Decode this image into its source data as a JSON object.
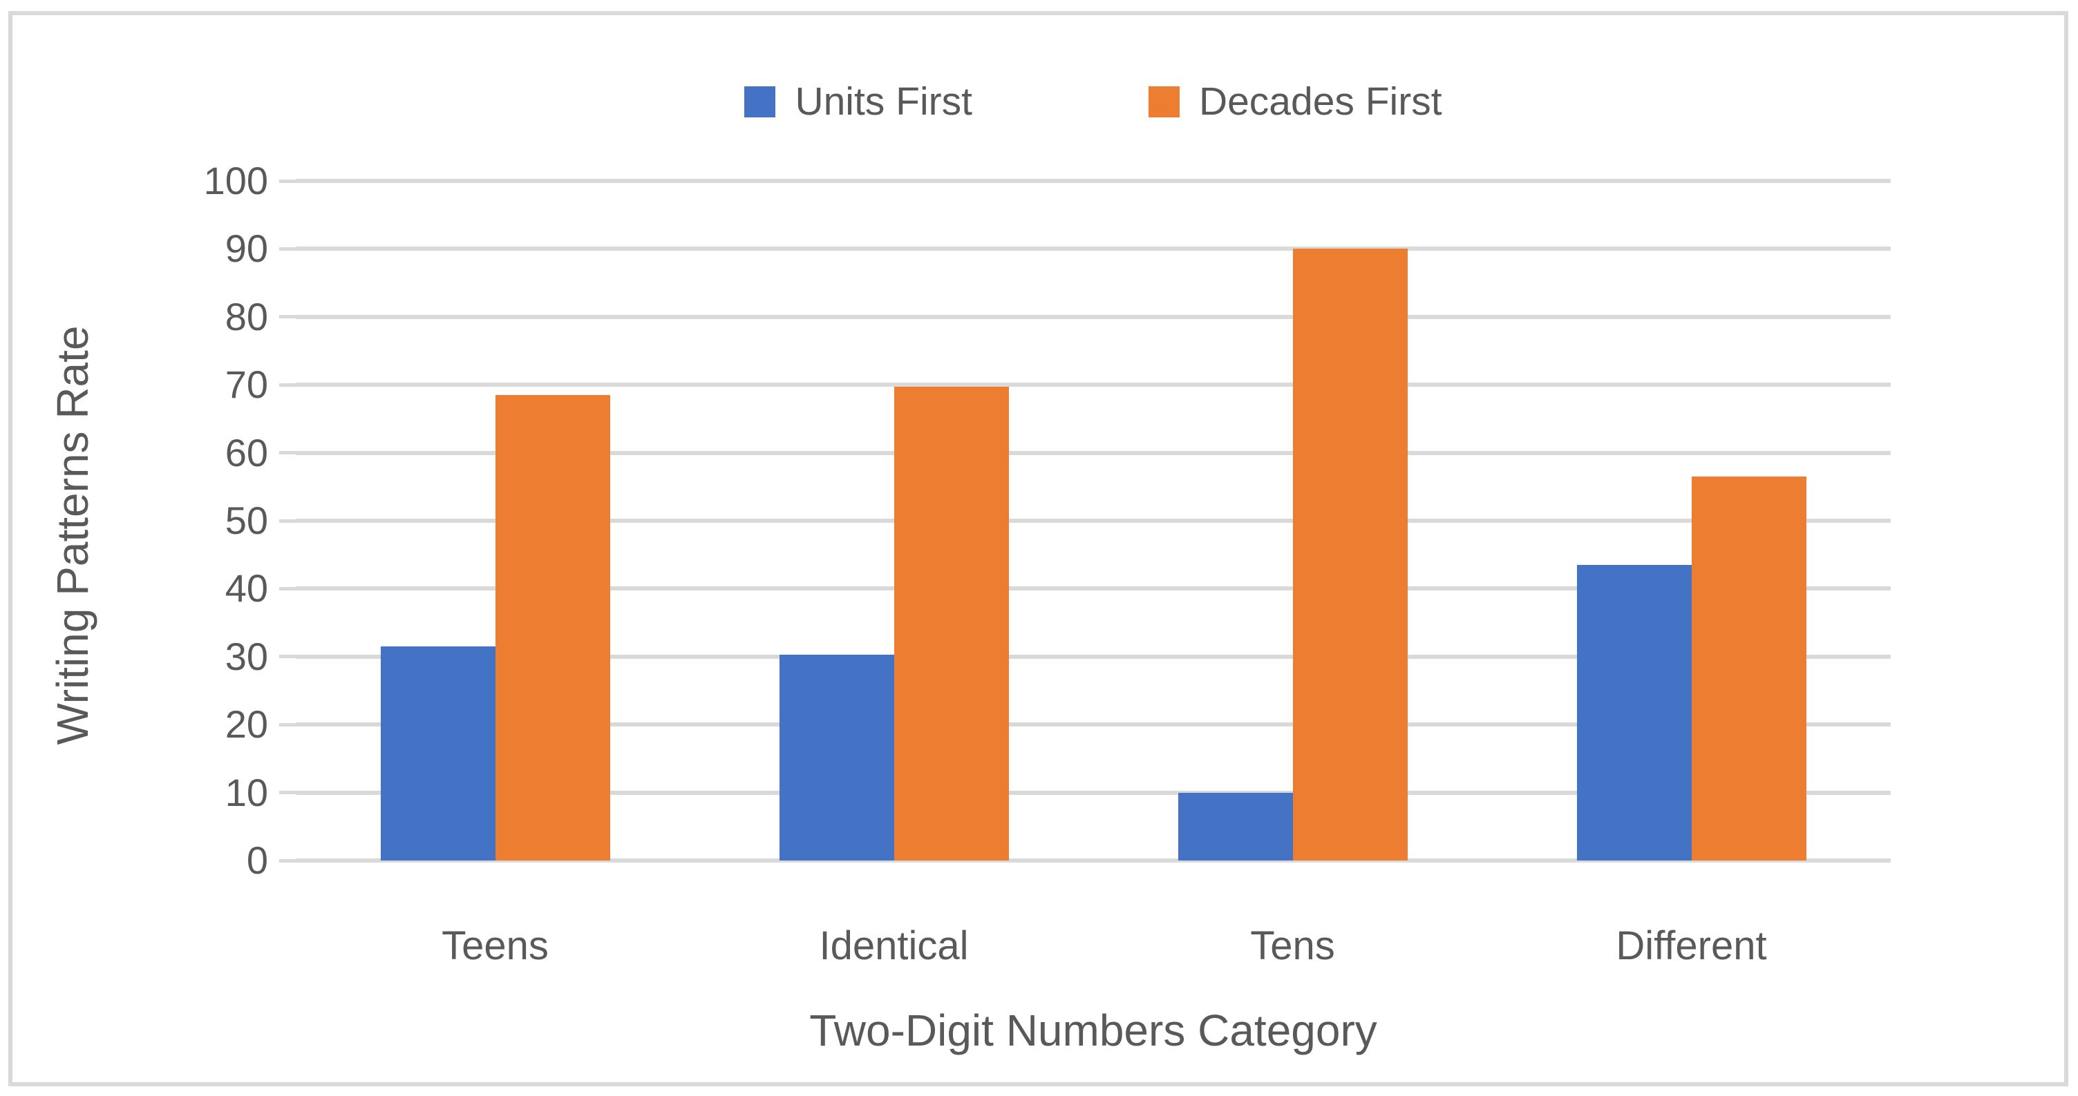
{
  "chart_data": {
    "type": "bar",
    "categories": [
      "Teens",
      "Identical",
      "Tens",
      "Different"
    ],
    "series": [
      {
        "name": "Units First",
        "color": "#4472C4",
        "values": [
          31.5,
          30.3,
          10,
          43.5
        ]
      },
      {
        "name": "Decades First",
        "color": "#ED7D31",
        "values": [
          68.5,
          69.7,
          90,
          56.5
        ]
      }
    ],
    "title": "",
    "xlabel": "Two-Digit Numbers Category",
    "ylabel": "Writing Patterns Rate",
    "ylim": [
      0,
      100
    ],
    "yticks": [
      0,
      10,
      20,
      30,
      40,
      50,
      60,
      70,
      80,
      90,
      100
    ],
    "grid": true,
    "legend_position": "top",
    "colors": {
      "gridline": "#D9D9D9",
      "tick_mark": "#D9D9D9",
      "text": "#595959",
      "figure_border": "#D9D9D9",
      "background": "#FFFFFF"
    }
  }
}
